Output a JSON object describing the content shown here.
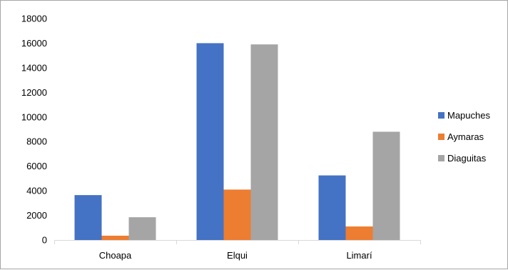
{
  "chart_data": {
    "type": "bar",
    "categories": [
      "Choapa",
      "Elqui",
      "Limarí"
    ],
    "series": [
      {
        "name": "Mapuches",
        "color": "#4472c4",
        "values": [
          3650,
          16000,
          5250
        ]
      },
      {
        "name": "Aymaras",
        "color": "#ed7d31",
        "values": [
          350,
          4100,
          1100
        ]
      },
      {
        "name": "Diaguitas",
        "color": "#a5a5a5",
        "values": [
          1850,
          15900,
          8800
        ]
      }
    ],
    "ylim": [
      0,
      18000
    ],
    "yticks": [
      0,
      2000,
      4000,
      6000,
      8000,
      10000,
      12000,
      14000,
      16000,
      18000
    ],
    "grid": false,
    "legend": "right"
  }
}
